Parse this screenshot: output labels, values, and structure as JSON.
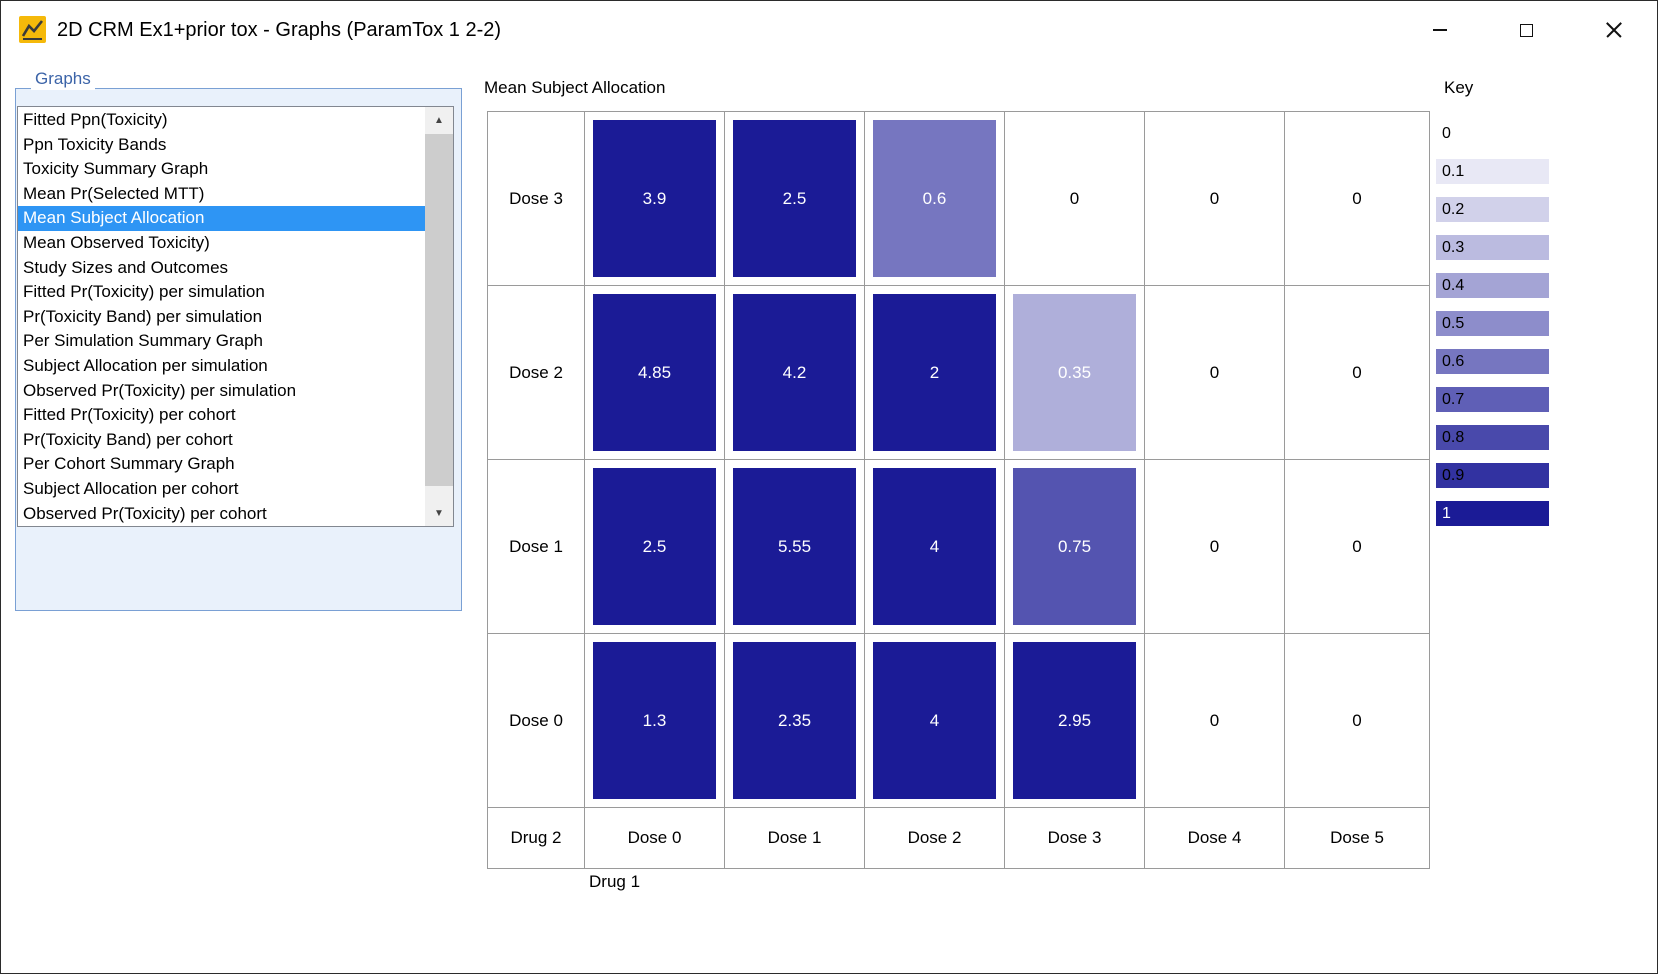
{
  "window": {
    "title": "2D CRM Ex1+prior tox - Graphs (ParamTox 1 2-2)"
  },
  "colors": {
    "selection": "#2e95f4",
    "groupbox_border": "#7aa0d4",
    "groupbox_label_text": "#3c64a8",
    "grid_line": "#9a9a9a",
    "heatmap_min": "#ffffff",
    "heatmap_max": "#1b1b96",
    "icon_yellow": "#f5b90a"
  },
  "graphs_panel": {
    "label": "Graphs",
    "selected_index": 4,
    "items": [
      "Fitted Ppn(Toxicity)",
      "Ppn Toxicity Bands",
      "Toxicity Summary Graph",
      "Mean Pr(Selected MTT)",
      "Mean Subject Allocation",
      "Mean Observed Toxicity)",
      "Study Sizes and Outcomes",
      "Fitted Pr(Toxicity) per simulation",
      "Pr(Toxicity Band) per simulation",
      "Per Simulation Summary Graph",
      "Subject Allocation per simulation",
      "Observed Pr(Toxicity) per simulation",
      "Fitted Pr(Toxicity) per cohort",
      "Pr(Toxicity Band) per cohort",
      "Per Cohort Summary Graph",
      "Subject Allocation per cohort",
      "Observed Pr(Toxicity) per cohort"
    ]
  },
  "chart_data": {
    "type": "heatmap",
    "title": "Mean Subject Allocation",
    "xlabel": "Drug 1",
    "corner_label": "Drug 2",
    "x_categories": [
      "Dose 0",
      "Dose 1",
      "Dose 2",
      "Dose 3",
      "Dose 4",
      "Dose 5"
    ],
    "y_categories_top_to_bottom": [
      "Dose 3",
      "Dose 2",
      "Dose 1",
      "Dose 0"
    ],
    "values_top_to_bottom": [
      [
        3.9,
        2.5,
        0.6,
        0,
        0,
        0
      ],
      [
        4.85,
        4.2,
        2,
        0.35,
        0,
        0
      ],
      [
        2.5,
        5.55,
        4,
        0.75,
        0,
        0
      ],
      [
        1.3,
        2.35,
        4,
        2.95,
        0,
        0
      ]
    ],
    "color_scale": {
      "description": "cell fill = linear blend white to dark navy of min(value,1); 0 cells are white with black text",
      "clamp_max": 1
    }
  },
  "key": {
    "label": "Key",
    "entries": [
      {
        "label": "0",
        "t": 0
      },
      {
        "label": "0.1",
        "t": 0.1
      },
      {
        "label": "0.2",
        "t": 0.2
      },
      {
        "label": "0.3",
        "t": 0.3
      },
      {
        "label": "0.4",
        "t": 0.4
      },
      {
        "label": "0.5",
        "t": 0.5
      },
      {
        "label": "0.6",
        "t": 0.6
      },
      {
        "label": "0.7",
        "t": 0.7
      },
      {
        "label": "0.8",
        "t": 0.8
      },
      {
        "label": "0.9",
        "t": 0.9
      },
      {
        "label": "1",
        "t": 1
      }
    ]
  }
}
